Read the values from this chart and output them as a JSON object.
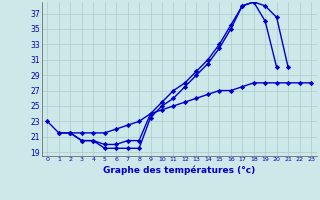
{
  "title": "Graphe des températures (°c)",
  "background_color": "#cce8e8",
  "grid_color": "#aacccc",
  "line_color": "#0000cc",
  "ylim": [
    18.5,
    38.5
  ],
  "yticks": [
    19,
    21,
    23,
    25,
    27,
    29,
    31,
    33,
    35,
    37
  ],
  "xlim": [
    -0.5,
    23.5
  ],
  "xticks": [
    0,
    1,
    2,
    3,
    4,
    5,
    6,
    7,
    8,
    9,
    10,
    11,
    12,
    13,
    14,
    15,
    16,
    17,
    18,
    19,
    20,
    21,
    22,
    23
  ],
  "marker": "D",
  "marker_size": 2.2,
  "line_width": 1.0,
  "l1_x": [
    0,
    1,
    2,
    3,
    4,
    5,
    6,
    7,
    8,
    9,
    10,
    11,
    12,
    13,
    14,
    15,
    16,
    17,
    18,
    19,
    20
  ],
  "l1_y": [
    23,
    21.5,
    21.5,
    20.5,
    20.5,
    19.5,
    19.5,
    19.5,
    19.5,
    23.5,
    25,
    26,
    27.5,
    29,
    30.5,
    32.5,
    35,
    38,
    38.5,
    36,
    30
  ],
  "l2_x": [
    2,
    3,
    4,
    5,
    6,
    7,
    8,
    9,
    10,
    11,
    12,
    13,
    14,
    15,
    16,
    17,
    18,
    19,
    20,
    21
  ],
  "l2_y": [
    21.5,
    20.5,
    20.5,
    20.0,
    20.0,
    20.5,
    20.5,
    24,
    25.5,
    27,
    28,
    29.5,
    31,
    33,
    35.5,
    38,
    38.5,
    38,
    36.5,
    30
  ],
  "l3_x": [
    1,
    2,
    3,
    4,
    5,
    6,
    7,
    8,
    9,
    10,
    11,
    12,
    13,
    14,
    15,
    16,
    17,
    18,
    19,
    20,
    21,
    22,
    23
  ],
  "l3_y": [
    21.5,
    21.5,
    21.5,
    21.5,
    21.5,
    22,
    22.5,
    23,
    24,
    24.5,
    25,
    25.5,
    26,
    26.5,
    27,
    27,
    27.5,
    28,
    28,
    28,
    28,
    28,
    28
  ]
}
